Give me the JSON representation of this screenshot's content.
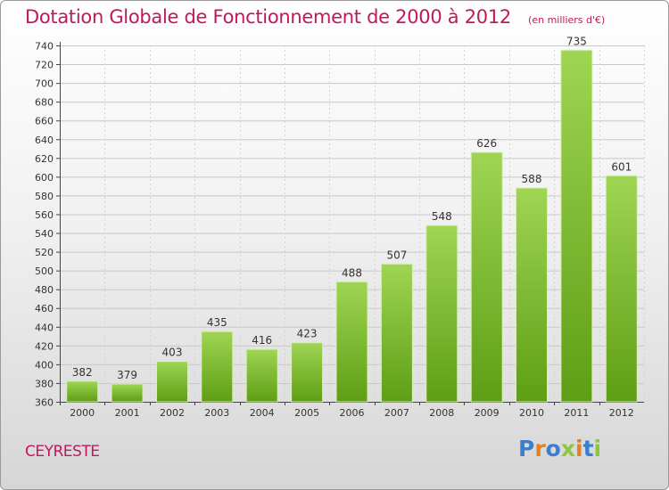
{
  "title": "Dotation Globale de Fonctionnement de 2000 à 2012",
  "unit": "(en milliers d'€)",
  "commune": "CEYRESTE",
  "logo": {
    "letters": [
      "P",
      "r",
      "o",
      "x",
      "i",
      "t",
      "i"
    ],
    "colors": [
      "#3a7fd0",
      "#e67e22",
      "#3a7fd0",
      "#8dc63f",
      "#e67e22",
      "#3a7fd0",
      "#8dc63f"
    ]
  },
  "colors": {
    "bar_top": "#9fd553",
    "bar_bottom": "#5e9e14",
    "accent": "#c2185b"
  },
  "chart_data": {
    "type": "bar",
    "categories": [
      "2000",
      "2001",
      "2002",
      "2003",
      "2004",
      "2005",
      "2006",
      "2007",
      "2008",
      "2009",
      "2010",
      "2011",
      "2012"
    ],
    "values": [
      382,
      379,
      403,
      435,
      416,
      423,
      488,
      507,
      548,
      626,
      588,
      735,
      601
    ],
    "ylim": [
      360,
      740
    ],
    "yticks": [
      360,
      380,
      400,
      420,
      440,
      460,
      480,
      500,
      520,
      540,
      560,
      580,
      600,
      620,
      640,
      660,
      680,
      700,
      720,
      740
    ],
    "grid": true,
    "data_labels": true
  }
}
